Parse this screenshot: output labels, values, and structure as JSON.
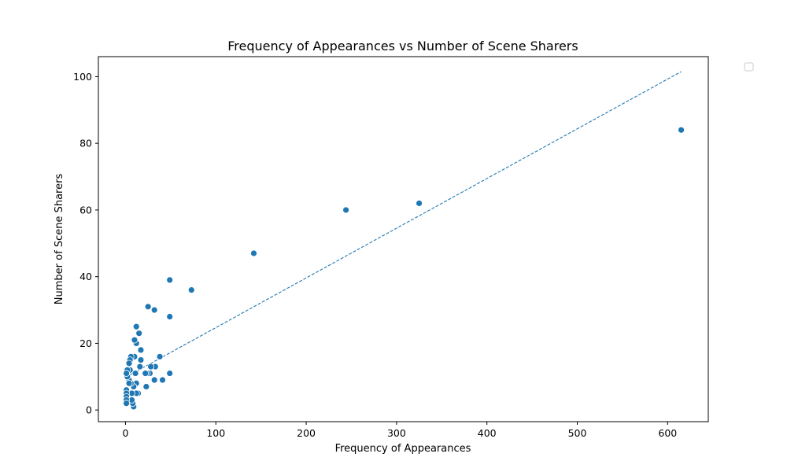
{
  "chart_data": {
    "type": "scatter",
    "title": "Frequency of Appearances vs Number of Scene Sharers",
    "xlabel": "Frequency of Appearances",
    "ylabel": "Number of Scene Sharers",
    "xlim": [
      -30,
      645
    ],
    "ylim": [
      -3.5,
      106
    ],
    "xticks": [
      0,
      100,
      200,
      300,
      400,
      500,
      600
    ],
    "yticks": [
      0,
      20,
      40,
      60,
      80,
      100
    ],
    "grid": false,
    "legend": "upper-right, empty",
    "marker_color": "#1f77b4",
    "trendline": {
      "style": "dashed",
      "color": "#1f77b4",
      "points": [
        [
          0,
          9.8
        ],
        [
          615,
          101.5
        ]
      ]
    },
    "points": [
      [
        615,
        84
      ],
      [
        325,
        62
      ],
      [
        244,
        60
      ],
      [
        142,
        47
      ],
      [
        73,
        36
      ],
      [
        49,
        39
      ],
      [
        49,
        28
      ],
      [
        49,
        11
      ],
      [
        41,
        9
      ],
      [
        38,
        16
      ],
      [
        33,
        13
      ],
      [
        32,
        30
      ],
      [
        32,
        9
      ],
      [
        28,
        13
      ],
      [
        27,
        11
      ],
      [
        25,
        31
      ],
      [
        24,
        11
      ],
      [
        23,
        7
      ],
      [
        22,
        11
      ],
      [
        17,
        18
      ],
      [
        17,
        15
      ],
      [
        16,
        13
      ],
      [
        15,
        23
      ],
      [
        14,
        5
      ],
      [
        12,
        25
      ],
      [
        12,
        20
      ],
      [
        12,
        8
      ],
      [
        12,
        5
      ],
      [
        11,
        11
      ],
      [
        10,
        21
      ],
      [
        10,
        16
      ],
      [
        9,
        7
      ],
      [
        9,
        1
      ],
      [
        8,
        2
      ],
      [
        7,
        5
      ],
      [
        7,
        3
      ],
      [
        6,
        16
      ],
      [
        6,
        8
      ],
      [
        5,
        15
      ],
      [
        5,
        12
      ],
      [
        4,
        14
      ],
      [
        4,
        9
      ],
      [
        4,
        8
      ],
      [
        2,
        12
      ],
      [
        2,
        10
      ],
      [
        1,
        11
      ],
      [
        1,
        6
      ],
      [
        1,
        5
      ],
      [
        1,
        4
      ],
      [
        1,
        3
      ],
      [
        1,
        2
      ]
    ]
  }
}
